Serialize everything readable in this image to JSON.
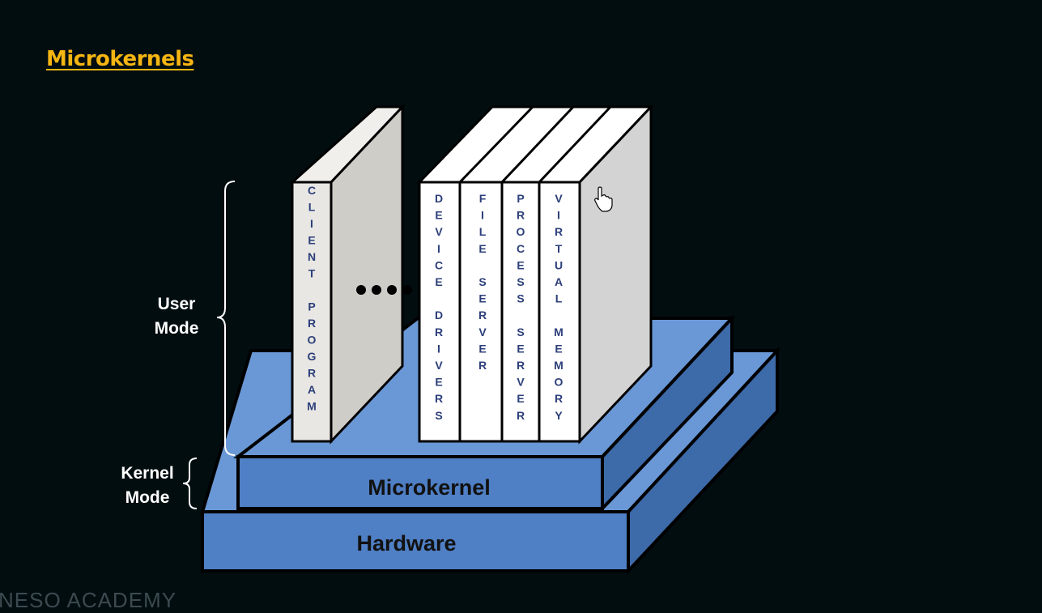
{
  "title": "Microkernels",
  "labels": {
    "user_mode": "User\nMode",
    "kernel_mode": "Kernel\nMode"
  },
  "layers": {
    "microkernel": "Microkernel",
    "hardware": "Hardware"
  },
  "blocks": [
    {
      "id": "client-program",
      "text": "CLIENT PROGRAM"
    },
    {
      "id": "device-drivers",
      "text": "DEVICE DRIVERS"
    },
    {
      "id": "file-server",
      "text": "FILE SERVER"
    },
    {
      "id": "process-server",
      "text": "PROCESS SERVER"
    },
    {
      "id": "virtual-memory",
      "text": "VIRTUAL MEMORY"
    }
  ],
  "ellipsis": "....",
  "watermark": "NESO ACADEMY",
  "colors": {
    "background": "#020d10",
    "title": "#f5b512",
    "layer_front": "#4f7fc4",
    "layer_top": "#6a98d6",
    "layer_side": "#3d6aa8",
    "block_text": "#2c3f7a"
  },
  "icons": [
    "hand-cursor-icon"
  ]
}
